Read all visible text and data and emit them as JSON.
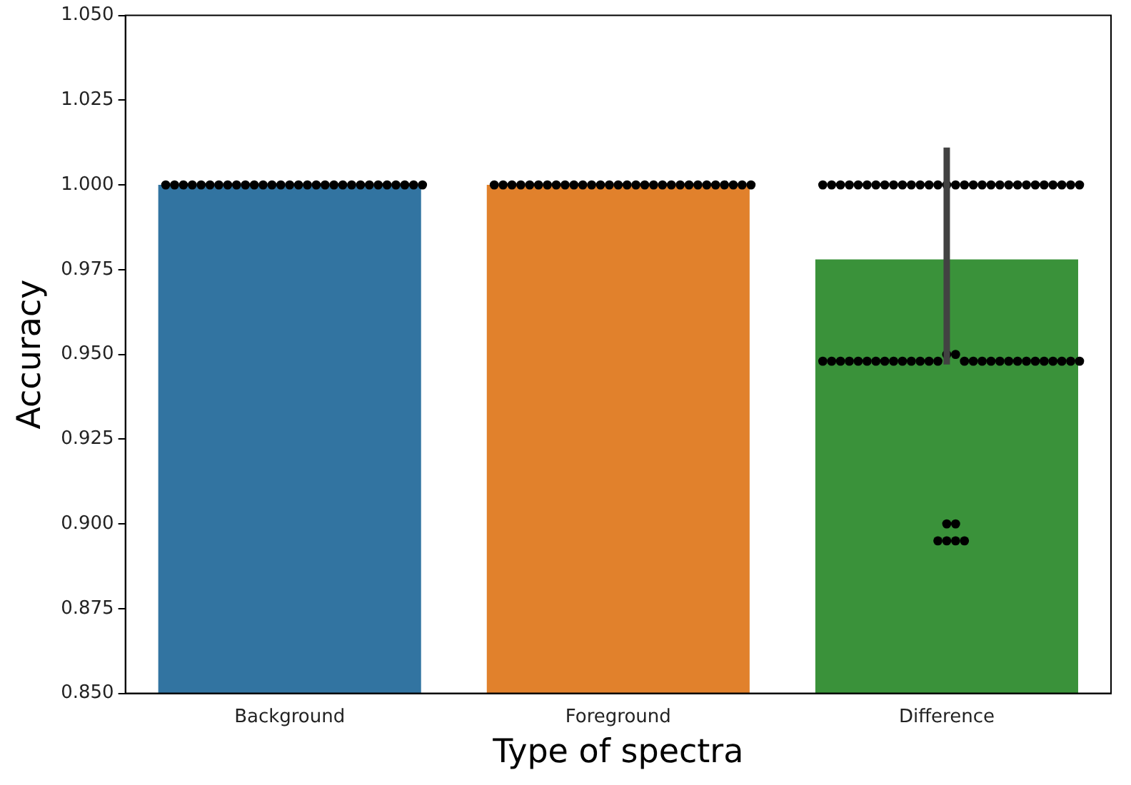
{
  "chart_data": {
    "type": "bar",
    "xlabel": "Type of spectra",
    "ylabel": "Accuracy",
    "categories": [
      "Background",
      "Foreground",
      "Difference"
    ],
    "series": [
      {
        "colors": [
          "#3274a1",
          "#e1812c",
          "#3a923a"
        ],
        "values": [
          1.0,
          1.0,
          0.978
        ],
        "errors": [
          null,
          null,
          [
            0.947,
            1.011
          ]
        ]
      },
      {
        "type": "scatter",
        "color": "#000000",
        "x": [
          "Background",
          "Background",
          "Background",
          "Background",
          "Background",
          "Background",
          "Background",
          "Background",
          "Background",
          "Background",
          "Background",
          "Background",
          "Background",
          "Background",
          "Background",
          "Background",
          "Background",
          "Background",
          "Background",
          "Background",
          "Background",
          "Background",
          "Background",
          "Background",
          "Background",
          "Background",
          "Background",
          "Background",
          "Background",
          "Background",
          "Foreground",
          "Foreground",
          "Foreground",
          "Foreground",
          "Foreground",
          "Foreground",
          "Foreground",
          "Foreground",
          "Foreground",
          "Foreground",
          "Foreground",
          "Foreground",
          "Foreground",
          "Foreground",
          "Foreground",
          "Foreground",
          "Foreground",
          "Foreground",
          "Foreground",
          "Foreground",
          "Foreground",
          "Foreground",
          "Foreground",
          "Foreground",
          "Foreground",
          "Foreground",
          "Foreground",
          "Foreground",
          "Foreground",
          "Foreground",
          "Difference",
          "Difference",
          "Difference",
          "Difference",
          "Difference",
          "Difference",
          "Difference",
          "Difference",
          "Difference",
          "Difference",
          "Difference",
          "Difference",
          "Difference",
          "Difference",
          "Difference",
          "Difference",
          "Difference",
          "Difference",
          "Difference",
          "Difference",
          "Difference",
          "Difference",
          "Difference",
          "Difference",
          "Difference",
          "Difference",
          "Difference",
          "Difference",
          "Difference",
          "Difference",
          "Difference",
          "Difference",
          "Difference",
          "Difference",
          "Difference",
          "Difference",
          "Difference",
          "Difference",
          "Difference",
          "Difference",
          "Difference",
          "Difference",
          "Difference",
          "Difference",
          "Difference",
          "Difference",
          "Difference",
          "Difference",
          "Difference",
          "Difference",
          "Difference",
          "Difference",
          "Difference",
          "Difference",
          "Difference",
          "Difference",
          "Difference",
          "Difference",
          "Difference",
          "Difference",
          "Difference",
          "Difference",
          "Difference",
          "Difference",
          "Difference",
          "Difference"
        ],
        "values": [
          1,
          1,
          1,
          1,
          1,
          1,
          1,
          1,
          1,
          1,
          1,
          1,
          1,
          1,
          1,
          1,
          1,
          1,
          1,
          1,
          1,
          1,
          1,
          1,
          1,
          1,
          1,
          1,
          1,
          1,
          1,
          1,
          1,
          1,
          1,
          1,
          1,
          1,
          1,
          1,
          1,
          1,
          1,
          1,
          1,
          1,
          1,
          1,
          1,
          1,
          1,
          1,
          1,
          1,
          1,
          1,
          1,
          1,
          1,
          1,
          1,
          1,
          1,
          1,
          1,
          1,
          1,
          1,
          1,
          1,
          1,
          1,
          1,
          1,
          1,
          1,
          1,
          1,
          1,
          1,
          1,
          1,
          1,
          1,
          1,
          1,
          1,
          1,
          1,
          1,
          0.95,
          0.95,
          0.948,
          0.948,
          0.948,
          0.948,
          0.948,
          0.948,
          0.948,
          0.948,
          0.948,
          0.948,
          0.948,
          0.948,
          0.948,
          0.948,
          0.948,
          0.948,
          0.948,
          0.948,
          0.948,
          0.948,
          0.948,
          0.948,
          0.948,
          0.948,
          0.948,
          0.948,
          0.948,
          0.948,
          0.9,
          0.9,
          0.895,
          0.895,
          0.895,
          0.895
        ]
      }
    ],
    "ylim": [
      0.85,
      1.05
    ],
    "yticks": [
      {
        "value": 0.85,
        "label": "0.850"
      },
      {
        "value": 0.875,
        "label": "0.875"
      },
      {
        "value": 0.9,
        "label": "0.900"
      },
      {
        "value": 0.925,
        "label": "0.925"
      },
      {
        "value": 0.95,
        "label": "0.950"
      },
      {
        "value": 0.975,
        "label": "0.975"
      },
      {
        "value": 1.0,
        "label": "1.000"
      },
      {
        "value": 1.025,
        "label": "1.025"
      },
      {
        "value": 1.05,
        "label": "1.050"
      }
    ],
    "grid": false,
    "legend": false
  }
}
